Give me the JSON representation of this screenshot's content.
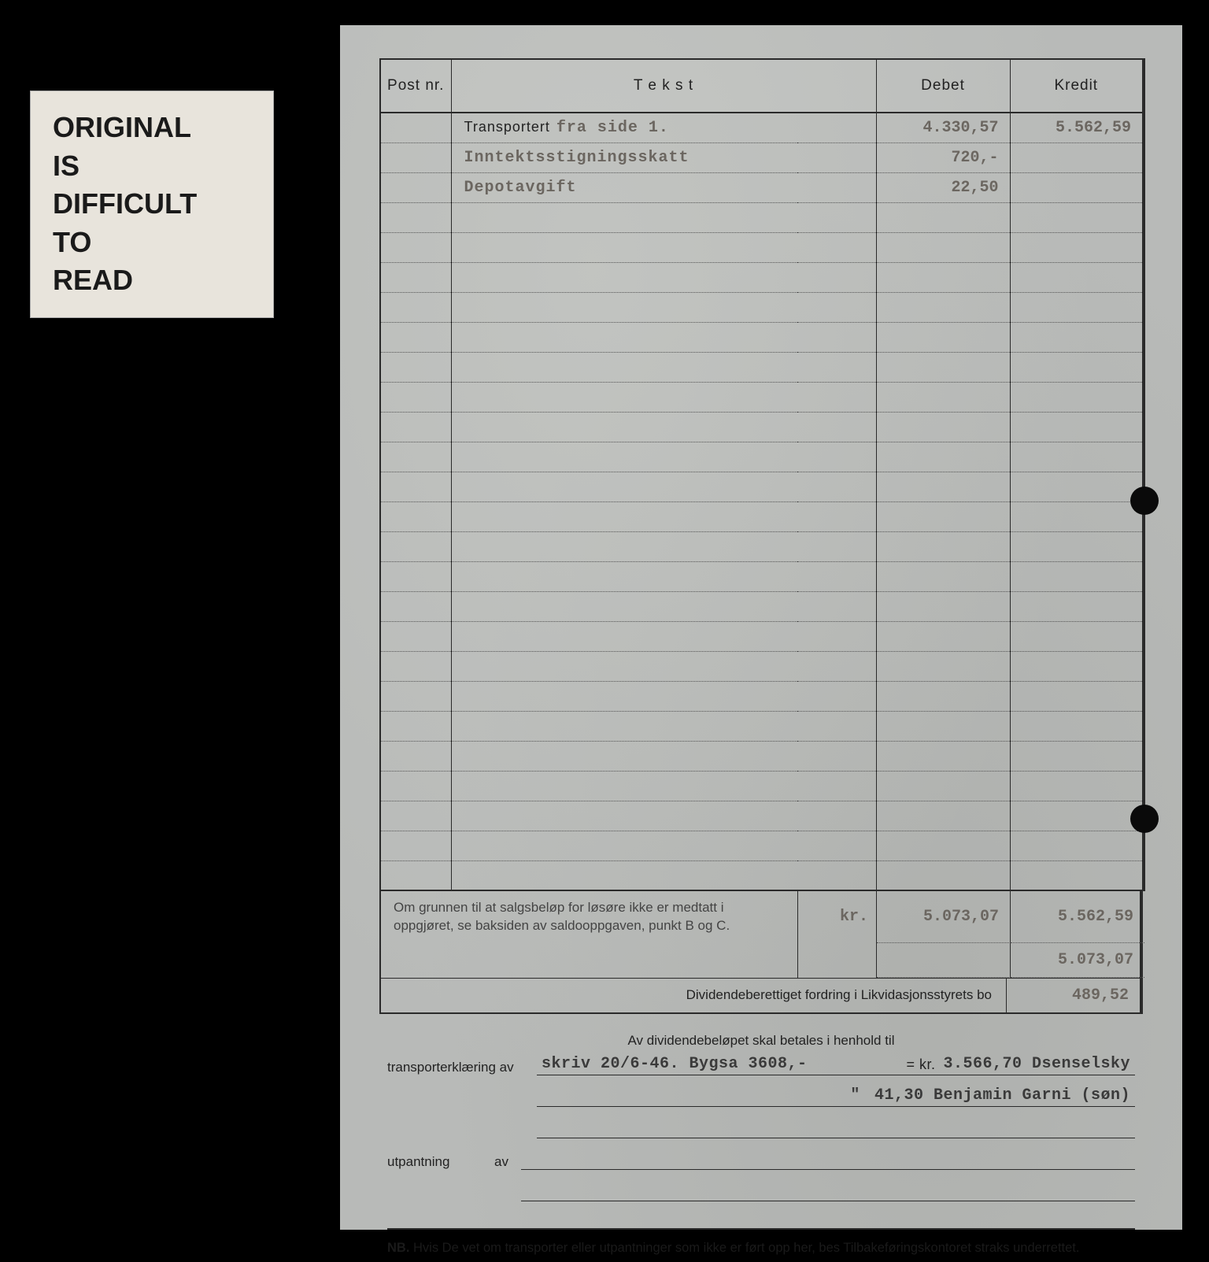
{
  "notice": {
    "text": "ORIGINAL\nIS\nDIFFICULT\nTO\nREAD"
  },
  "ledger": {
    "headers": {
      "post_nr": "Post nr.",
      "tekst": "T e k s t",
      "debet": "Debet",
      "kredit": "Kredit"
    },
    "rows": [
      {
        "printed": "Transportert",
        "typed": "fra side 1.",
        "debet": "4.330,57",
        "kredit": "5.562,59"
      },
      {
        "printed": "",
        "typed": "Inntektsstigningsskatt",
        "debet": "720,-",
        "kredit": ""
      },
      {
        "printed": "",
        "typed": "Depotavgift",
        "debet": "22,50",
        "kredit": ""
      }
    ],
    "empty_row_count": 23
  },
  "footer": {
    "note_text": "Om grunnen til at salgsbeløp for løsøre ikke er medtatt i oppgjøret, se baksiden av saldooppgaven, punkt B og C.",
    "kr_label": "kr.",
    "sum_debet": "5.073,07",
    "sum_kredit1": "5.562,59",
    "sum_kredit2": "5.073,07",
    "dividend_label": "Dividendeberettiget fordring i Likvidasjonsstyrets bo",
    "dividend_value": "489,52"
  },
  "below": {
    "heading": "Av dividendebeløpet skal betales i henhold til",
    "transport_label": "transporterklæring av",
    "transport_line1_left": "skriv 20/6-46.   Bygsa 3608,-",
    "transport_eq": "= kr.",
    "transport_line1_right": "3.566,70 Dsenselsky",
    "transport_line2_ditto": "\"",
    "transport_line2_right": "41,30 Benjamin Garni (søn)",
    "utpantning_label": "utpantning",
    "av_label": "av"
  },
  "nb": {
    "prefix": "NB.",
    "text": "Hvis De vet om transporter eller utpantninger som ikke er ført opp her, bes Tilbakeføringskontoret straks underrettet."
  },
  "colors": {
    "page_bg": "#000000",
    "paper": "#b8bab8",
    "notice_bg": "#e8e4dc",
    "ink": "#2a2a2a",
    "typed": "#6b6660"
  }
}
